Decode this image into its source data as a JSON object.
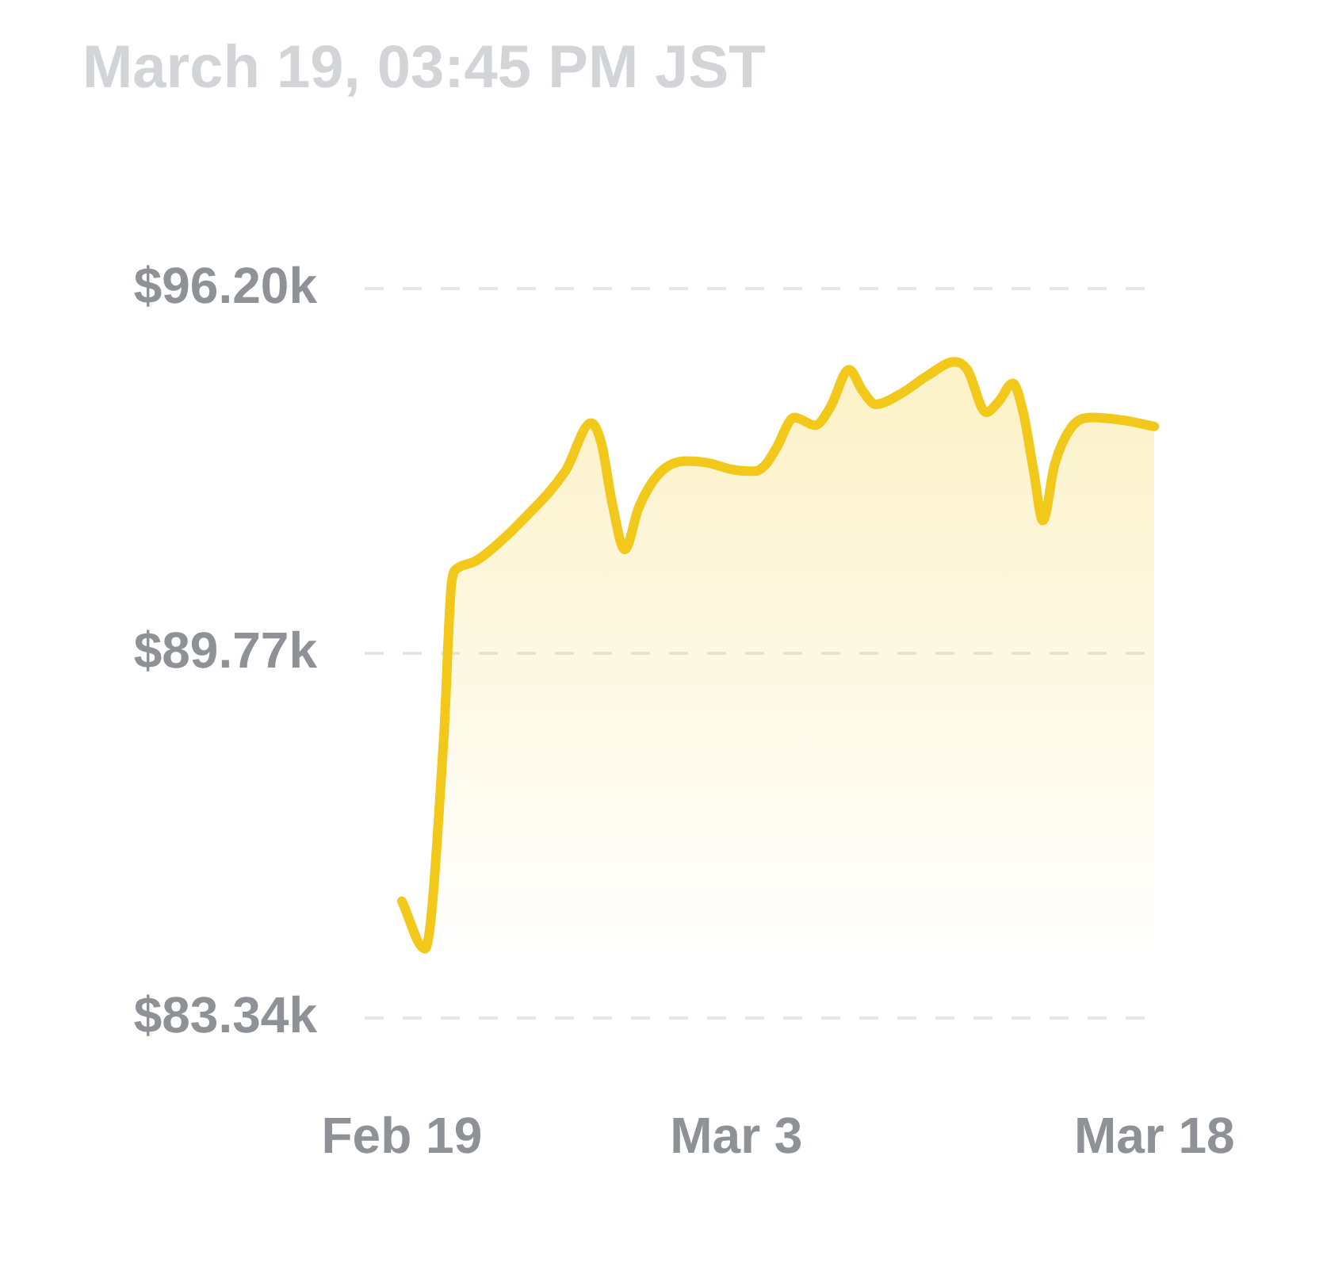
{
  "chart_data": {
    "type": "area",
    "title": "March 19, 03:45 PM JST",
    "x": [
      "--02-19",
      "--02-19T20:00",
      "--02-20T12:00",
      "--02-20T19:00",
      "--02-21",
      "--02-21T15:00",
      "--02-22T05:00",
      "--02-23T08:00",
      "--02-24T21:00",
      "--02-25T19:00",
      "--02-26T04:00",
      "--02-26T13:00",
      "--02-27",
      "--02-27T12:00",
      "--02-28T06:00",
      "--03-01T05:00",
      "--03-01T23:00",
      "--03-02T21:00",
      "--03-03T16:00",
      "--03-04T01:00",
      "--03-04T10:00",
      "--03-05T02:00",
      "--03-05T20:00",
      "--03-06T09:00",
      "--03-07T01:00",
      "--03-07T13:00",
      "--03-08",
      "--03-08T22:00",
      "--03-09T21:00",
      "--03-10T20:00",
      "--03-11T07:00",
      "--03-11T23:00",
      "--03-12T10:00",
      "--03-12T22:00",
      "--03-13T07:00",
      "--03-13T16:00",
      "--03-14",
      "--03-14T10:00",
      "--03-15",
      "--03-15T18:00",
      "--03-16T21:00",
      "--03-18"
    ],
    "values": [
      85400,
      84560,
      88240,
      91040,
      91270,
      91390,
      91600,
      92120,
      92990,
      93830,
      93460,
      92430,
      91600,
      92340,
      92950,
      93160,
      93130,
      93010,
      92980,
      93090,
      93370,
      93930,
      93790,
      94110,
      94770,
      94390,
      94160,
      94350,
      94670,
      94910,
      94770,
      94020,
      94210,
      94530,
      94020,
      92990,
      92110,
      93090,
      93740,
      93930,
      93880,
      93770
    ],
    "color": "#f2c81b",
    "xlim": [
      "--02-17T16:00",
      "--03-18T08:00"
    ],
    "xticks": [
      {
        "value": "--02-19",
        "label": "Feb 19"
      },
      {
        "value": "--03-03",
        "label": "Mar 3"
      },
      {
        "value": "--03-18",
        "label": "Mar 18"
      }
    ],
    "ylim": [
      83340,
      96200
    ],
    "yticks": [
      {
        "value": 83340,
        "label": "$83.34k"
      },
      {
        "value": 89770,
        "label": "$89.77k"
      },
      {
        "value": 96200,
        "label": "$96.20k"
      }
    ],
    "grid": "y",
    "marker": "none"
  }
}
